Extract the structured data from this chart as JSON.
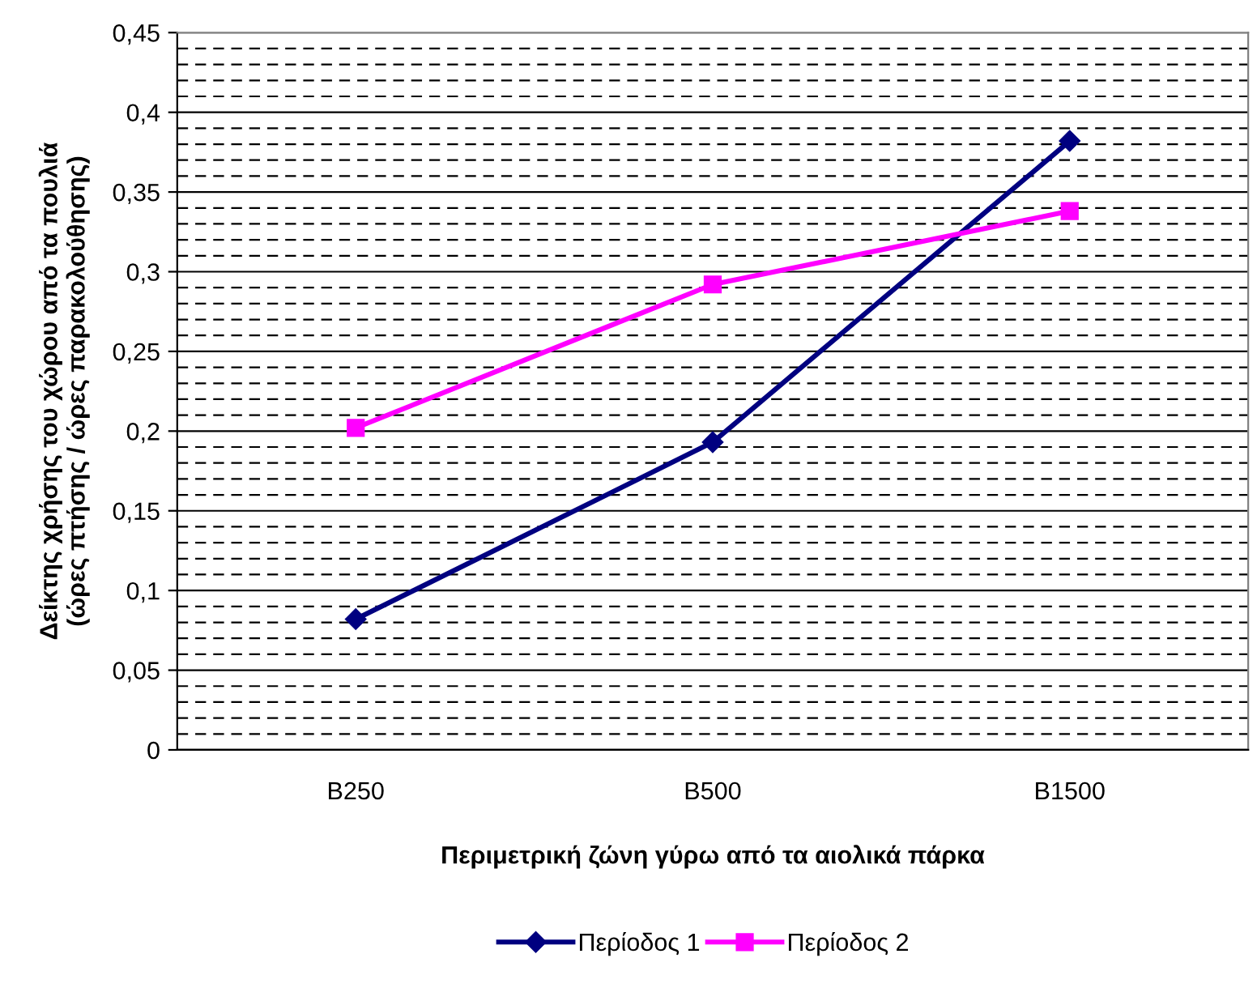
{
  "chart_data": {
    "type": "line",
    "xlabel": "Περιμετρική ζώνη γύρω από τα αιολικά πάρκα",
    "ylabel": "Δείκτης χρήσης του χώρου από τα πουλιά\n(ώρες πτήσης / ώρες παρακολούθησης)",
    "categories": [
      "B250",
      "B500",
      "B1500"
    ],
    "series": [
      {
        "name": "Περίοδος 1",
        "color": "#000080",
        "marker": "diamond",
        "values": [
          0.082,
          0.193,
          0.382
        ]
      },
      {
        "name": "Περίοδος 2",
        "color": "#ff00ff",
        "marker": "square",
        "values": [
          0.202,
          0.292,
          0.338
        ]
      }
    ],
    "ylim": [
      0,
      0.45
    ],
    "yticks": [
      0,
      {
        "value": 0.01,
        "label": null
      },
      {
        "value": 0.02,
        "label": null
      },
      {
        "value": 0.03,
        "label": null
      },
      {
        "value": 0.04,
        "label": null
      },
      {
        "value": 0.05,
        "label": "0,05"
      },
      {
        "value": 0.06,
        "label": null
      },
      {
        "value": 0.07,
        "label": null
      },
      {
        "value": 0.08,
        "label": null
      },
      {
        "value": 0.09,
        "label": null
      },
      {
        "value": 0.1,
        "label": "0,1"
      },
      {
        "value": 0.11,
        "label": null
      },
      {
        "value": 0.12,
        "label": null
      },
      {
        "value": 0.13,
        "label": null
      },
      {
        "value": 0.14,
        "label": null
      },
      {
        "value": 0.15,
        "label": "0,15"
      },
      {
        "value": 0.16,
        "label": null
      },
      {
        "value": 0.17,
        "label": null
      },
      {
        "value": 0.18,
        "label": null
      },
      {
        "value": 0.19,
        "label": null
      },
      {
        "value": 0.2,
        "label": "0,2"
      },
      {
        "value": 0.21,
        "label": null
      },
      {
        "value": 0.22,
        "label": null
      },
      {
        "value": 0.23,
        "label": null
      },
      {
        "value": 0.24,
        "label": null
      },
      {
        "value": 0.25,
        "label": "0,25"
      },
      {
        "value": 0.26,
        "label": null
      },
      {
        "value": 0.27,
        "label": null
      },
      {
        "value": 0.28,
        "label": null
      },
      {
        "value": 0.29,
        "label": null
      },
      {
        "value": 0.3,
        "label": "0,3"
      },
      {
        "value": 0.31,
        "label": null
      },
      {
        "value": 0.32,
        "label": null
      },
      {
        "value": 0.33,
        "label": null
      },
      {
        "value": 0.34,
        "label": null
      },
      {
        "value": 0.35,
        "label": "0,35"
      },
      {
        "value": 0.36,
        "label": null
      },
      {
        "value": 0.37,
        "label": null
      },
      {
        "value": 0.38,
        "label": null
      },
      {
        "value": 0.39,
        "label": null
      },
      {
        "value": 0.4,
        "label": "0,4"
      },
      {
        "value": 0.41,
        "label": null
      },
      {
        "value": 0.42,
        "label": null
      },
      {
        "value": 0.43,
        "label": null
      },
      {
        "value": 0.44,
        "label": null
      },
      {
        "value": 0.45,
        "label": "0,45"
      }
    ],
    "grid": "y",
    "legend": "bottom",
    "line_style": "solid"
  }
}
